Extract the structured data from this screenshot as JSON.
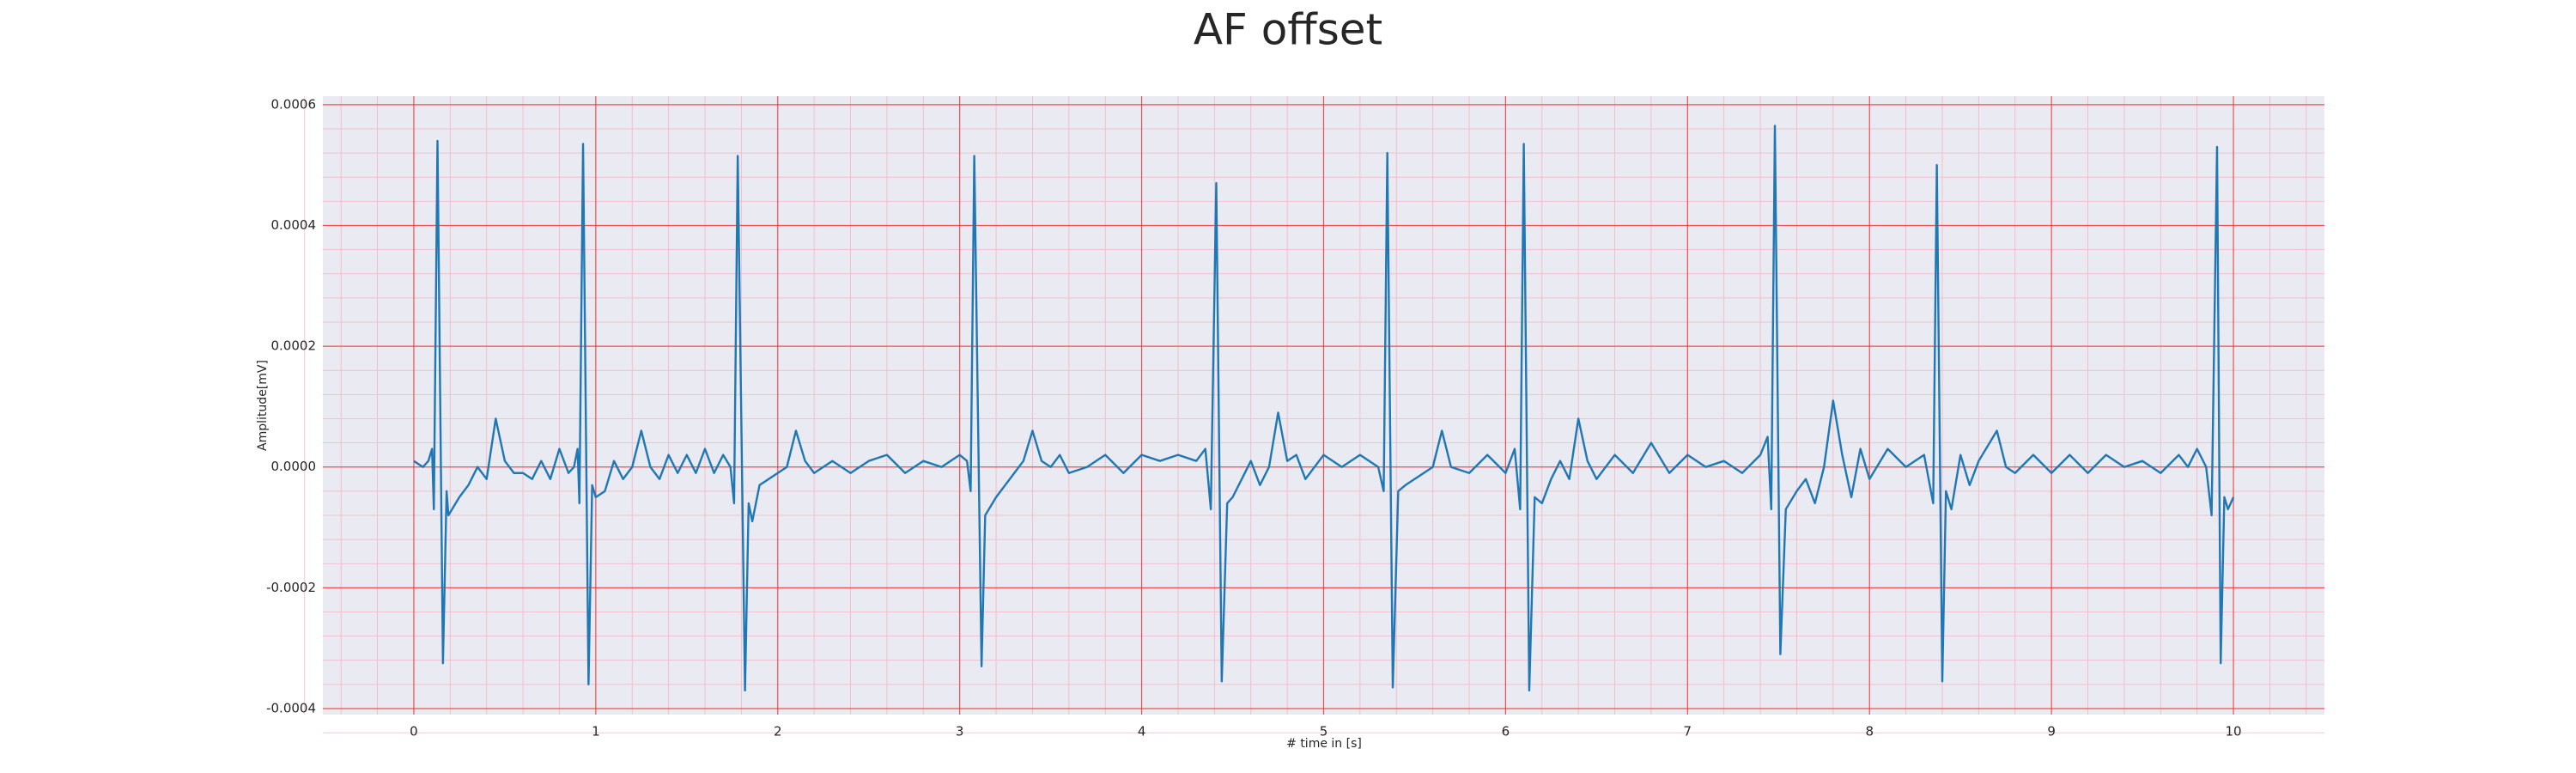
{
  "chart_data": {
    "type": "line",
    "title": "AF offset",
    "x_label": "# time in [s]",
    "y_label": "Amplitude[mV]",
    "color": "#1f77b4",
    "grid": true,
    "minor_grid": true,
    "xlim": [
      -0.5,
      10.5
    ],
    "xticks": [
      0,
      1,
      2,
      3,
      4,
      5,
      6,
      7,
      8,
      9,
      10
    ],
    "ylim": [
      -0.00041,
      0.000614
    ],
    "yticks": [
      {
        "value": -0.0004,
        "label": "-0.0004"
      },
      {
        "value": -0.0002,
        "label": "-0.0002"
      },
      {
        "value": 0,
        "label": "0.0000"
      },
      {
        "value": 0.0002,
        "label": "0.0002"
      },
      {
        "value": 0.0004,
        "label": "0.0004"
      },
      {
        "value": 0.0006,
        "label": "0.0006"
      }
    ],
    "x": [
      0.0,
      0.05,
      0.08,
      0.1,
      0.11,
      0.13,
      0.16,
      0.18,
      0.19,
      0.25,
      0.3,
      0.35,
      0.4,
      0.45,
      0.5,
      0.55,
      0.6,
      0.65,
      0.7,
      0.75,
      0.8,
      0.85,
      0.88,
      0.9,
      0.91,
      0.93,
      0.96,
      0.98,
      1.0,
      1.05,
      1.1,
      1.15,
      1.2,
      1.25,
      1.3,
      1.35,
      1.4,
      1.45,
      1.5,
      1.55,
      1.6,
      1.65,
      1.7,
      1.74,
      1.76,
      1.78,
      1.82,
      1.84,
      1.86,
      1.9,
      1.95,
      2.0,
      2.05,
      2.1,
      2.15,
      2.2,
      2.3,
      2.4,
      2.5,
      2.6,
      2.7,
      2.8,
      2.9,
      3.0,
      3.04,
      3.06,
      3.08,
      3.12,
      3.14,
      3.2,
      3.25,
      3.3,
      3.35,
      3.4,
      3.45,
      3.5,
      3.55,
      3.6,
      3.7,
      3.8,
      3.9,
      4.0,
      4.1,
      4.2,
      4.3,
      4.35,
      4.38,
      4.41,
      4.44,
      4.47,
      4.5,
      4.55,
      4.6,
      4.65,
      4.7,
      4.75,
      4.8,
      4.85,
      4.9,
      5.0,
      5.1,
      5.2,
      5.3,
      5.33,
      5.35,
      5.38,
      5.41,
      5.45,
      5.5,
      5.6,
      5.65,
      5.7,
      5.8,
      5.9,
      6.0,
      6.05,
      6.08,
      6.1,
      6.13,
      6.16,
      6.2,
      6.25,
      6.3,
      6.35,
      6.4,
      6.45,
      6.5,
      6.6,
      6.7,
      6.8,
      6.9,
      7.0,
      7.1,
      7.2,
      7.3,
      7.4,
      7.44,
      7.46,
      7.48,
      7.51,
      7.54,
      7.6,
      7.65,
      7.7,
      7.75,
      7.8,
      7.85,
      7.9,
      7.95,
      8.0,
      8.1,
      8.2,
      8.3,
      8.35,
      8.37,
      8.4,
      8.42,
      8.45,
      8.5,
      8.55,
      8.6,
      8.7,
      8.75,
      8.8,
      8.9,
      9.0,
      9.1,
      9.2,
      9.3,
      9.4,
      9.5,
      9.6,
      9.7,
      9.75,
      9.8,
      9.85,
      9.88,
      9.91,
      9.93,
      9.95,
      9.97,
      10.0
    ],
    "values": [
      1e-05,
      0,
      1e-05,
      3e-05,
      -7e-05,
      0.00054,
      -0.000325,
      -4e-05,
      -8e-05,
      -5e-05,
      -3e-05,
      0,
      -2e-05,
      8e-05,
      1e-05,
      -1e-05,
      -1e-05,
      -2e-05,
      1e-05,
      -2e-05,
      3e-05,
      -1e-05,
      0,
      3e-05,
      -6e-05,
      0.000535,
      -0.00036,
      -3e-05,
      -5e-05,
      -4e-05,
      1e-05,
      -2e-05,
      0,
      6e-05,
      0,
      -2e-05,
      2e-05,
      -1e-05,
      2e-05,
      -1e-05,
      3e-05,
      -1e-05,
      2e-05,
      0,
      -6e-05,
      0.000515,
      -0.00037,
      -6e-05,
      -9e-05,
      -3e-05,
      -2e-05,
      -1e-05,
      0,
      6e-05,
      1e-05,
      -1e-05,
      1e-05,
      -1e-05,
      1e-05,
      2e-05,
      -1e-05,
      1e-05,
      0,
      2e-05,
      1e-05,
      -4e-05,
      0.000515,
      -0.00033,
      -8e-05,
      -5e-05,
      -3e-05,
      -1e-05,
      1e-05,
      6e-05,
      1e-05,
      0,
      2e-05,
      -1e-05,
      0,
      2e-05,
      -1e-05,
      2e-05,
      1e-05,
      2e-05,
      1e-05,
      3e-05,
      -7e-05,
      0.00047,
      -0.000355,
      -6e-05,
      -5e-05,
      -2e-05,
      1e-05,
      -3e-05,
      0,
      9e-05,
      1e-05,
      2e-05,
      -2e-05,
      2e-05,
      0,
      2e-05,
      0,
      -4e-05,
      0.00052,
      -0.000365,
      -4e-05,
      -3e-05,
      -2e-05,
      0,
      6e-05,
      0,
      -1e-05,
      2e-05,
      -1e-05,
      3e-05,
      -7e-05,
      0.000535,
      -0.00037,
      -5e-05,
      -6e-05,
      -2e-05,
      1e-05,
      -2e-05,
      8e-05,
      1e-05,
      -2e-05,
      2e-05,
      -1e-05,
      4e-05,
      -1e-05,
      2e-05,
      0,
      1e-05,
      -1e-05,
      2e-05,
      5e-05,
      -7e-05,
      0.000565,
      -0.00031,
      -7e-05,
      -4e-05,
      -2e-05,
      -6e-05,
      0,
      0.00011,
      2e-05,
      -5e-05,
      3e-05,
      -2e-05,
      3e-05,
      0,
      2e-05,
      -6e-05,
      0.0005,
      -0.000355,
      -4e-05,
      -7e-05,
      2e-05,
      -3e-05,
      1e-05,
      6e-05,
      0,
      -1e-05,
      2e-05,
      -1e-05,
      2e-05,
      -1e-05,
      2e-05,
      0,
      1e-05,
      -1e-05,
      2e-05,
      0,
      3e-05,
      0,
      -8e-05,
      0.00053,
      -0.000325,
      -5e-05,
      -7e-05,
      -5e-05
    ]
  }
}
